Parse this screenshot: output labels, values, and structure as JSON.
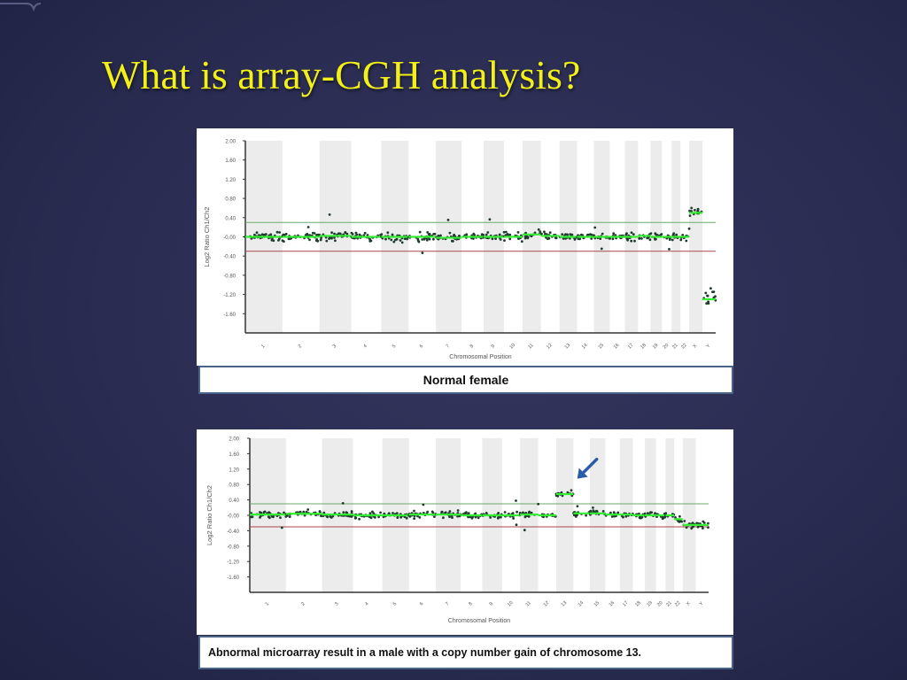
{
  "slide": {
    "title": "What is array-CGH analysis?"
  },
  "colors": {
    "title": "#f2f018",
    "background": "#2a2c52",
    "points": "#1f3b2c",
    "segments": "#33ee33",
    "upper_threshold": "#6aa86a",
    "lower_threshold": "#a84848",
    "arrow": "#2a5caa"
  },
  "chart_data": [
    {
      "type": "scatter",
      "caption": "Normal female",
      "ylabel": "Log2 Ratio Ch1/Ch2",
      "xlabel": "Chromosomal Position",
      "yticks": [
        "2.00",
        "1.60",
        "1.20",
        "0.80",
        "0.40",
        "-0.00",
        "-0.40",
        "-0.80",
        "-1.20",
        "-1.60"
      ],
      "ylim": [
        -2.0,
        2.0
      ],
      "thresholds": [
        0.3,
        -0.3
      ],
      "categories": [
        "1",
        "2",
        "3",
        "4",
        "5",
        "6",
        "7",
        "8",
        "9",
        "10",
        "11",
        "12",
        "13",
        "14",
        "15",
        "16",
        "17",
        "18",
        "19",
        "20",
        "21",
        "22",
        "X",
        "Y"
      ],
      "segment_means": [
        0,
        0,
        0.02,
        0,
        0,
        0,
        -0.02,
        0,
        0,
        0,
        0.05,
        0.02,
        0,
        0,
        0,
        0,
        0,
        0.02,
        0,
        0,
        0,
        0,
        0.5,
        -1.3
      ],
      "grid": false
    },
    {
      "type": "scatter",
      "caption": "Abnormal microarray result in a male with a copy number gain of chromosome 13.",
      "ylabel": "Log2 Ratio Ch1/Ch2",
      "xlabel": "Chromosomal Position",
      "yticks": [
        "2.00",
        "1.60",
        "1.20",
        "0.80",
        "0.40",
        "-0.00",
        "-0.40",
        "-0.80",
        "-1.20",
        "-1.60"
      ],
      "ylim": [
        -2.0,
        2.0
      ],
      "thresholds": [
        0.3,
        -0.3
      ],
      "categories": [
        "1",
        "2",
        "3",
        "4",
        "5",
        "6",
        "7",
        "8",
        "9",
        "10",
        "11",
        "12",
        "13",
        "14",
        "15",
        "16",
        "17",
        "18",
        "19",
        "20",
        "21",
        "22",
        "X",
        "Y"
      ],
      "segment_means": [
        0.02,
        0.04,
        0.02,
        0,
        0,
        0.02,
        0.02,
        0,
        0,
        0,
        0.02,
        0,
        0.55,
        0.05,
        0.05,
        0.02,
        0.02,
        0,
        0,
        0,
        0,
        -0.1,
        -0.25,
        -0.25
      ],
      "grid": false
    }
  ]
}
